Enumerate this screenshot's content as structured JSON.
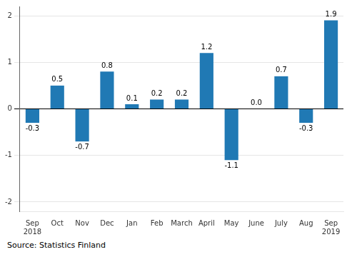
{
  "chart_data": {
    "type": "bar",
    "categories": [
      "Sep\n2018",
      "Oct",
      "Nov",
      "Dec",
      "Jan",
      "Feb",
      "March",
      "April",
      "May",
      "June",
      "July",
      "Aug",
      "Sep\n2019"
    ],
    "values": [
      -0.3,
      0.5,
      -0.7,
      0.8,
      0.1,
      0.2,
      0.2,
      1.2,
      -1.1,
      0.0,
      0.7,
      -0.3,
      1.9
    ],
    "value_labels": [
      "-0.3",
      "0.5",
      "-0.7",
      "0.8",
      "0.1",
      "0.2",
      "0.2",
      "1.2",
      "-1.1",
      "0.0",
      "0.7",
      "-0.3",
      "1.9"
    ],
    "color": "#2079b4",
    "ylim": [
      -2.2,
      2.2
    ],
    "yticks": [
      -2,
      -1,
      0,
      1,
      2
    ],
    "grid": true,
    "data_labels": true,
    "annotations": [
      "Source: Statistics Finland"
    ]
  }
}
